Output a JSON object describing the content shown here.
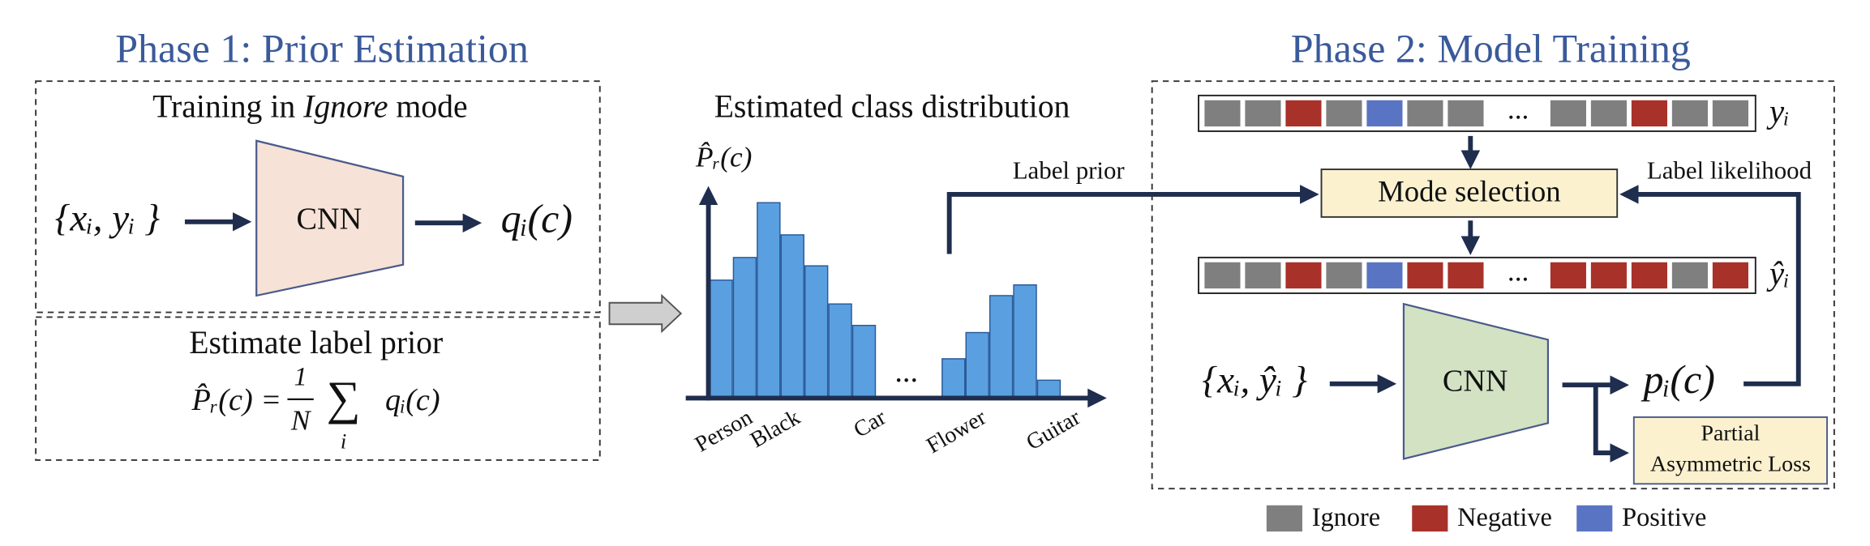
{
  "phase1": {
    "title": "Phase 1: Prior Estimation",
    "training": {
      "before": "Training in ",
      "mode": "Ignore",
      "after": " mode"
    },
    "cnn": "CNN",
    "input": "{xᵢ, yᵢ }",
    "output": "qᵢ(c)",
    "estimate": "Estimate label prior",
    "formula": {
      "lhs": "P̂ᵣ(c) =",
      "numerator": "1",
      "denominator": "N",
      "sum": "∑",
      "index": "i",
      "term": "qᵢ(c)"
    }
  },
  "distribution": {
    "title": "Estimated class distribution",
    "axis_label": "P̂ᵣ(c)",
    "ellipsis": "...",
    "classes": [
      "Person",
      "Black",
      "Car",
      "Flower",
      "Guitar"
    ]
  },
  "links": {
    "prior": "Label prior",
    "likelihood": "Label likelihood"
  },
  "phase2": {
    "title": "Phase 2: Model Training",
    "labels": "yᵢ",
    "mode_selection": "Mode selection",
    "new_labels": "ŷᵢ",
    "ellipsis_top": "...",
    "ellipsis_bottom": "...",
    "cnn": "CNN",
    "input": "{xᵢ, ŷᵢ }",
    "output": "pᵢ(c)",
    "loss": [
      "Partial",
      "Asymmetric Loss"
    ]
  },
  "legend": [
    "Ignore",
    "Negative",
    "Positive"
  ]
}
